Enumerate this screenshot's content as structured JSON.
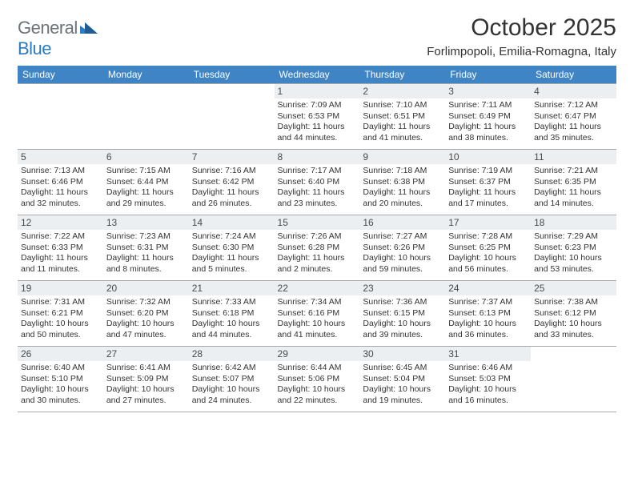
{
  "logo": {
    "text1": "General",
    "text2": "Blue"
  },
  "title": "October 2025",
  "location": "Forlimpopoli, Emilia-Romagna, Italy",
  "colors": {
    "header_bg": "#3f85c6",
    "header_text": "#ffffff",
    "daynum_bg": "#eceff1",
    "daynum_text": "#4a4a4a",
    "body_text": "#333333",
    "logo_gray": "#6b7278",
    "logo_blue": "#2b7bbf",
    "border": "#a8a8a8",
    "background": "#ffffff"
  },
  "typography": {
    "title_fontsize": 30,
    "location_fontsize": 15,
    "dayheader_fontsize": 12,
    "daynum_fontsize": 12,
    "dayinfo_fontsize": 10.5,
    "logo_fontsize": 22
  },
  "day_headers": [
    "Sunday",
    "Monday",
    "Tuesday",
    "Wednesday",
    "Thursday",
    "Friday",
    "Saturday"
  ],
  "weeks": [
    [
      {
        "num": "",
        "sunrise": "",
        "sunset": "",
        "daylight": ""
      },
      {
        "num": "",
        "sunrise": "",
        "sunset": "",
        "daylight": ""
      },
      {
        "num": "",
        "sunrise": "",
        "sunset": "",
        "daylight": ""
      },
      {
        "num": "1",
        "sunrise": "Sunrise: 7:09 AM",
        "sunset": "Sunset: 6:53 PM",
        "daylight": "Daylight: 11 hours and 44 minutes."
      },
      {
        "num": "2",
        "sunrise": "Sunrise: 7:10 AM",
        "sunset": "Sunset: 6:51 PM",
        "daylight": "Daylight: 11 hours and 41 minutes."
      },
      {
        "num": "3",
        "sunrise": "Sunrise: 7:11 AM",
        "sunset": "Sunset: 6:49 PM",
        "daylight": "Daylight: 11 hours and 38 minutes."
      },
      {
        "num": "4",
        "sunrise": "Sunrise: 7:12 AM",
        "sunset": "Sunset: 6:47 PM",
        "daylight": "Daylight: 11 hours and 35 minutes."
      }
    ],
    [
      {
        "num": "5",
        "sunrise": "Sunrise: 7:13 AM",
        "sunset": "Sunset: 6:46 PM",
        "daylight": "Daylight: 11 hours and 32 minutes."
      },
      {
        "num": "6",
        "sunrise": "Sunrise: 7:15 AM",
        "sunset": "Sunset: 6:44 PM",
        "daylight": "Daylight: 11 hours and 29 minutes."
      },
      {
        "num": "7",
        "sunrise": "Sunrise: 7:16 AM",
        "sunset": "Sunset: 6:42 PM",
        "daylight": "Daylight: 11 hours and 26 minutes."
      },
      {
        "num": "8",
        "sunrise": "Sunrise: 7:17 AM",
        "sunset": "Sunset: 6:40 PM",
        "daylight": "Daylight: 11 hours and 23 minutes."
      },
      {
        "num": "9",
        "sunrise": "Sunrise: 7:18 AM",
        "sunset": "Sunset: 6:38 PM",
        "daylight": "Daylight: 11 hours and 20 minutes."
      },
      {
        "num": "10",
        "sunrise": "Sunrise: 7:19 AM",
        "sunset": "Sunset: 6:37 PM",
        "daylight": "Daylight: 11 hours and 17 minutes."
      },
      {
        "num": "11",
        "sunrise": "Sunrise: 7:21 AM",
        "sunset": "Sunset: 6:35 PM",
        "daylight": "Daylight: 11 hours and 14 minutes."
      }
    ],
    [
      {
        "num": "12",
        "sunrise": "Sunrise: 7:22 AM",
        "sunset": "Sunset: 6:33 PM",
        "daylight": "Daylight: 11 hours and 11 minutes."
      },
      {
        "num": "13",
        "sunrise": "Sunrise: 7:23 AM",
        "sunset": "Sunset: 6:31 PM",
        "daylight": "Daylight: 11 hours and 8 minutes."
      },
      {
        "num": "14",
        "sunrise": "Sunrise: 7:24 AM",
        "sunset": "Sunset: 6:30 PM",
        "daylight": "Daylight: 11 hours and 5 minutes."
      },
      {
        "num": "15",
        "sunrise": "Sunrise: 7:26 AM",
        "sunset": "Sunset: 6:28 PM",
        "daylight": "Daylight: 11 hours and 2 minutes."
      },
      {
        "num": "16",
        "sunrise": "Sunrise: 7:27 AM",
        "sunset": "Sunset: 6:26 PM",
        "daylight": "Daylight: 10 hours and 59 minutes."
      },
      {
        "num": "17",
        "sunrise": "Sunrise: 7:28 AM",
        "sunset": "Sunset: 6:25 PM",
        "daylight": "Daylight: 10 hours and 56 minutes."
      },
      {
        "num": "18",
        "sunrise": "Sunrise: 7:29 AM",
        "sunset": "Sunset: 6:23 PM",
        "daylight": "Daylight: 10 hours and 53 minutes."
      }
    ],
    [
      {
        "num": "19",
        "sunrise": "Sunrise: 7:31 AM",
        "sunset": "Sunset: 6:21 PM",
        "daylight": "Daylight: 10 hours and 50 minutes."
      },
      {
        "num": "20",
        "sunrise": "Sunrise: 7:32 AM",
        "sunset": "Sunset: 6:20 PM",
        "daylight": "Daylight: 10 hours and 47 minutes."
      },
      {
        "num": "21",
        "sunrise": "Sunrise: 7:33 AM",
        "sunset": "Sunset: 6:18 PM",
        "daylight": "Daylight: 10 hours and 44 minutes."
      },
      {
        "num": "22",
        "sunrise": "Sunrise: 7:34 AM",
        "sunset": "Sunset: 6:16 PM",
        "daylight": "Daylight: 10 hours and 41 minutes."
      },
      {
        "num": "23",
        "sunrise": "Sunrise: 7:36 AM",
        "sunset": "Sunset: 6:15 PM",
        "daylight": "Daylight: 10 hours and 39 minutes."
      },
      {
        "num": "24",
        "sunrise": "Sunrise: 7:37 AM",
        "sunset": "Sunset: 6:13 PM",
        "daylight": "Daylight: 10 hours and 36 minutes."
      },
      {
        "num": "25",
        "sunrise": "Sunrise: 7:38 AM",
        "sunset": "Sunset: 6:12 PM",
        "daylight": "Daylight: 10 hours and 33 minutes."
      }
    ],
    [
      {
        "num": "26",
        "sunrise": "Sunrise: 6:40 AM",
        "sunset": "Sunset: 5:10 PM",
        "daylight": "Daylight: 10 hours and 30 minutes."
      },
      {
        "num": "27",
        "sunrise": "Sunrise: 6:41 AM",
        "sunset": "Sunset: 5:09 PM",
        "daylight": "Daylight: 10 hours and 27 minutes."
      },
      {
        "num": "28",
        "sunrise": "Sunrise: 6:42 AM",
        "sunset": "Sunset: 5:07 PM",
        "daylight": "Daylight: 10 hours and 24 minutes."
      },
      {
        "num": "29",
        "sunrise": "Sunrise: 6:44 AM",
        "sunset": "Sunset: 5:06 PM",
        "daylight": "Daylight: 10 hours and 22 minutes."
      },
      {
        "num": "30",
        "sunrise": "Sunrise: 6:45 AM",
        "sunset": "Sunset: 5:04 PM",
        "daylight": "Daylight: 10 hours and 19 minutes."
      },
      {
        "num": "31",
        "sunrise": "Sunrise: 6:46 AM",
        "sunset": "Sunset: 5:03 PM",
        "daylight": "Daylight: 10 hours and 16 minutes."
      },
      {
        "num": "",
        "sunrise": "",
        "sunset": "",
        "daylight": ""
      }
    ]
  ]
}
